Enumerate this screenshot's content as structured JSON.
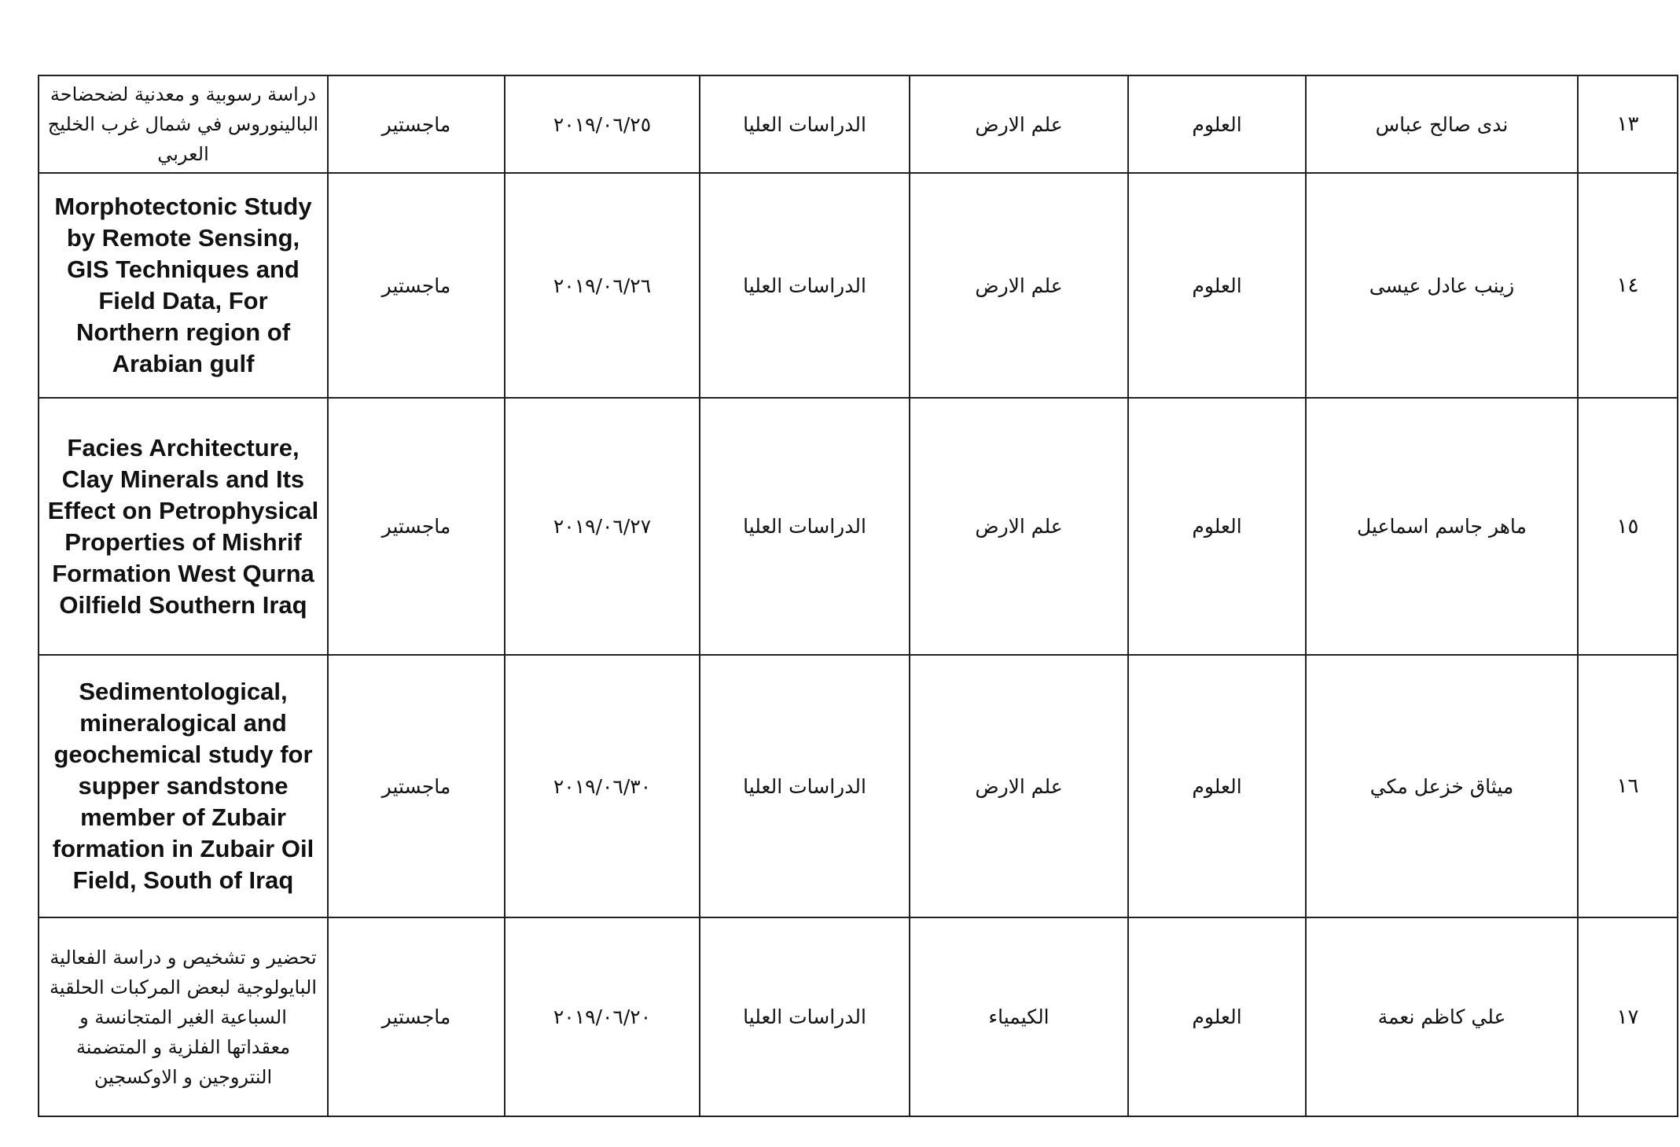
{
  "rows": [
    {
      "no": "١٣",
      "name": "ندى صالح عباس",
      "college": "العلوم",
      "department": "علم الارض",
      "studies": "الدراسات العليا",
      "date": "٢٠١٩/٠٦/٢٥",
      "degree": "ماجستير",
      "title": "دراسة رسوبية و معدنية لضحضاحة البالينوروس في شمال غرب الخليج العربي"
    },
    {
      "no": "١٤",
      "name": "زينب عادل عيسى",
      "college": "العلوم",
      "department": "علم الارض",
      "studies": "الدراسات العليا",
      "date": "٢٠١٩/٠٦/٢٦",
      "degree": "ماجستير",
      "title": "Morphotectonic Study by Remote Sensing, GIS Techniques and Field Data, For Northern region of Arabian gulf"
    },
    {
      "no": "١٥",
      "name": "ماهر جاسم اسماعيل",
      "college": "العلوم",
      "department": "علم الارض",
      "studies": "الدراسات العليا",
      "date": "٢٠١٩/٠٦/٢٧",
      "degree": "ماجستير",
      "title": "Facies Architecture, Clay Minerals and Its Effect on Petrophysical Properties of Mishrif Formation West Qurna Oilfield Southern Iraq"
    },
    {
      "no": "١٦",
      "name": "ميثاق خزعل مكي",
      "college": "العلوم",
      "department": "علم الارض",
      "studies": "الدراسات العليا",
      "date": "٢٠١٩/٠٦/٣٠",
      "degree": "ماجستير",
      "title": "Sedimentological, mineralogical and geochemical study for supper sandstone member of Zubair formation in Zubair Oil Field, South of Iraq"
    },
    {
      "no": "١٧",
      "name": "علي كاظم نعمة",
      "college": "العلوم",
      "department": "الكيمياء",
      "studies": "الدراسات العليا",
      "date": "٢٠١٩/٠٦/٢٠",
      "degree": "ماجستير",
      "title": "تحضير و تشخيص و دراسة الفعالية البايولوجية لبعض المركبات الحلقية السباعية الغير المتجانسة و معقداتها الفلزية و المتضمنة النتروجين و الاوكسجين"
    }
  ]
}
